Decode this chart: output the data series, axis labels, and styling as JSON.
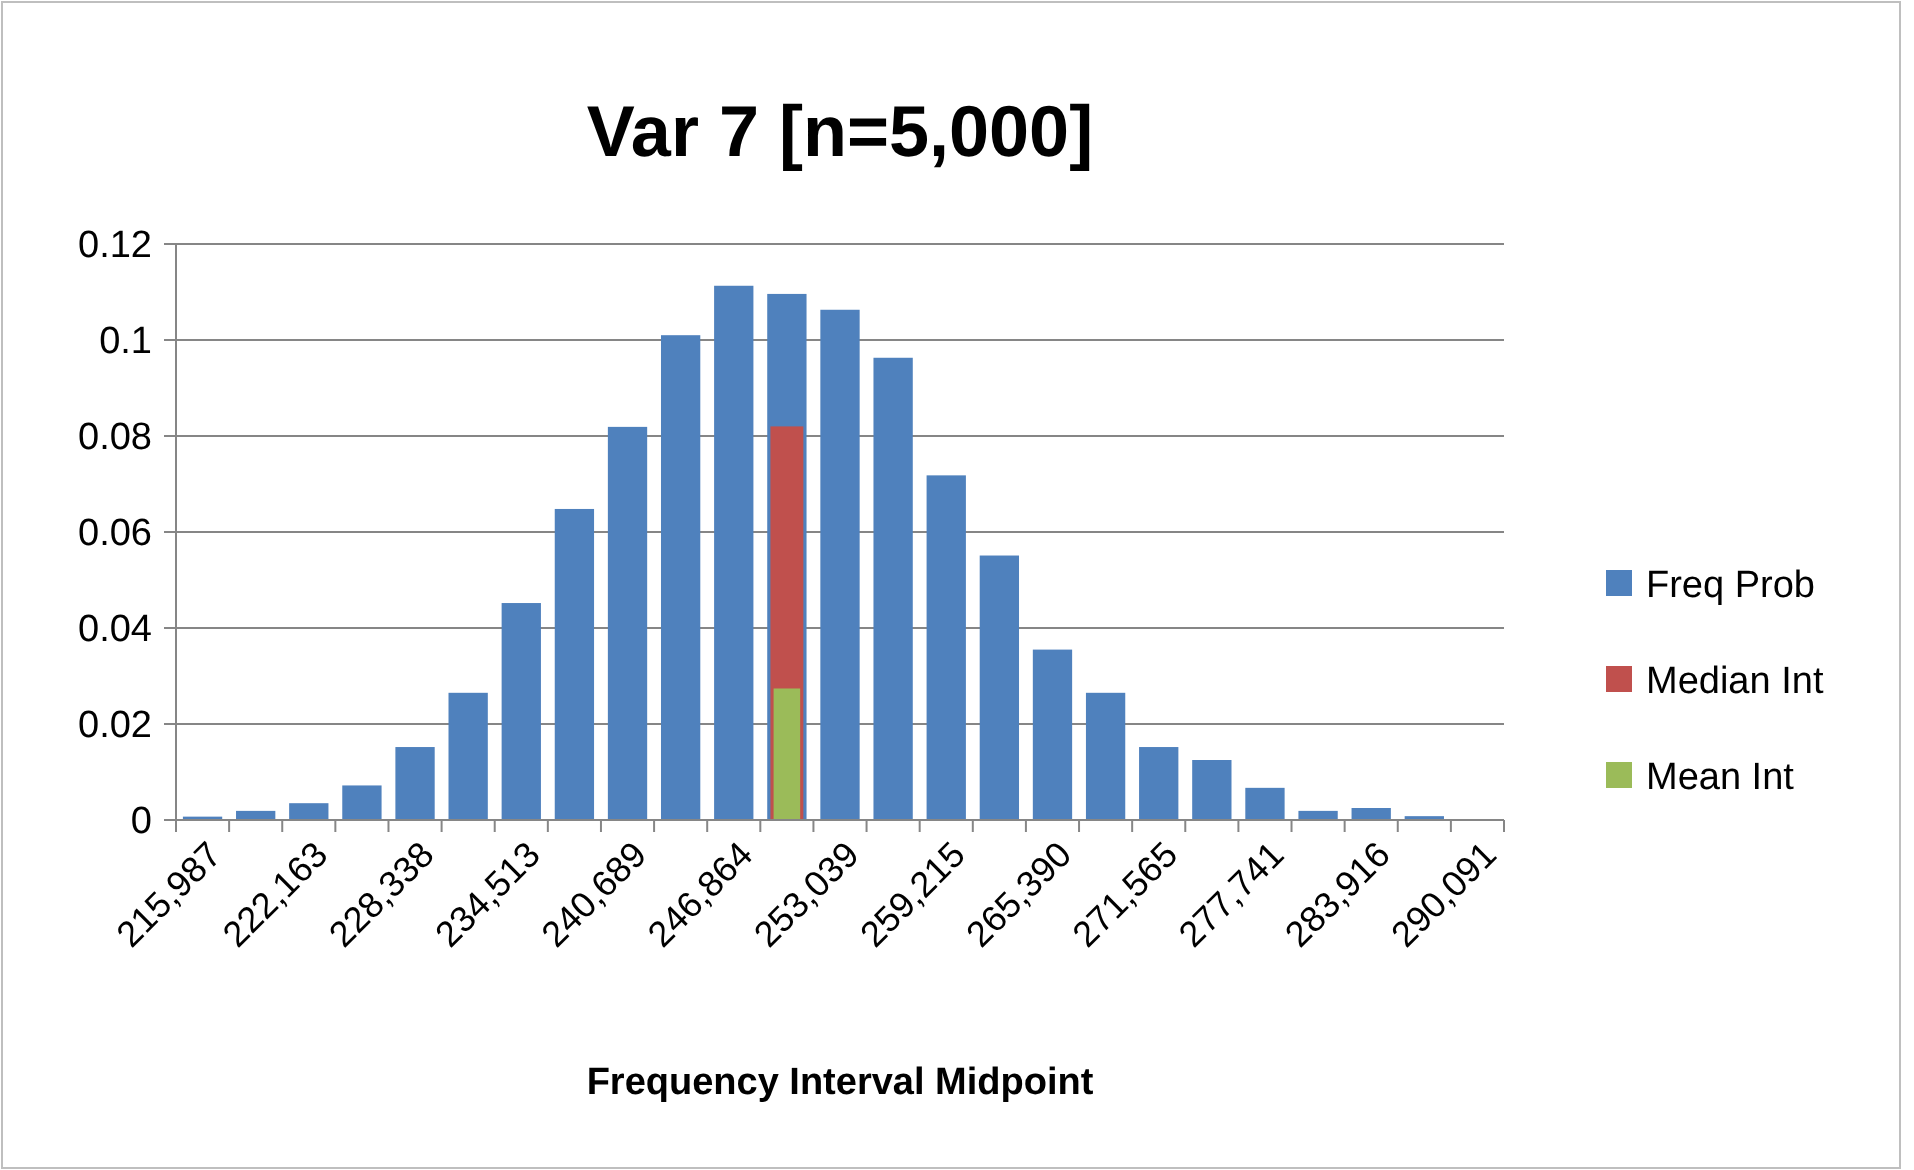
{
  "chart_data": {
    "type": "bar",
    "title": "Var 7 [n=5,000]",
    "xlabel": "Frequency Interval Midpoint",
    "categories": [
      "215,987",
      null,
      "222,163",
      null,
      "228,338",
      null,
      "234,513",
      null,
      "240,689",
      null,
      "246,864",
      null,
      "253,039",
      null,
      "259,215",
      null,
      "265,390",
      null,
      "271,565",
      null,
      "277,741",
      null,
      "283,916",
      null,
      "290,091"
    ],
    "series": [
      {
        "name": "Freq Prob",
        "color": "#4f81bd",
        "values": [
          0.0007,
          0.0019,
          0.0035,
          0.0072,
          0.0152,
          0.0265,
          0.0452,
          0.0648,
          0.0819,
          0.101,
          0.1113,
          0.1096,
          0.1063,
          0.0963,
          0.0718,
          0.0551,
          0.0355,
          0.0265,
          0.0152,
          0.0125,
          0.0067,
          0.0019,
          0.0025,
          0.0008,
          0
        ]
      },
      {
        "name": "Median Int",
        "color": "#c0504d",
        "values": [
          null,
          null,
          null,
          null,
          null,
          null,
          null,
          null,
          null,
          null,
          null,
          0.082,
          null,
          null,
          null,
          null,
          null,
          null,
          null,
          null,
          null,
          null,
          null,
          null,
          null
        ]
      },
      {
        "name": "Mean Int",
        "color": "#9bbb59",
        "values": [
          null,
          null,
          null,
          null,
          null,
          null,
          null,
          null,
          null,
          null,
          null,
          0.0274,
          null,
          null,
          null,
          null,
          null,
          null,
          null,
          null,
          null,
          null,
          null,
          null,
          null
        ]
      }
    ],
    "ylim": [
      0,
      0.12
    ],
    "yticks": [
      0,
      0.02,
      0.04,
      0.06,
      0.08,
      0.1,
      0.12
    ],
    "grid": "y",
    "legend": "right"
  }
}
